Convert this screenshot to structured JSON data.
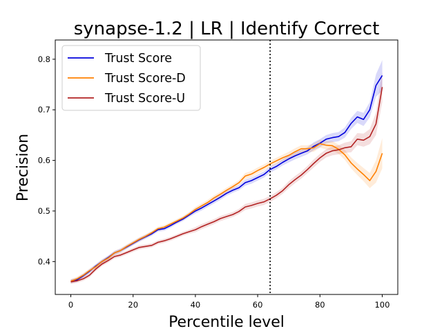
{
  "chart_data": {
    "type": "line",
    "title": "synapse-1.2 | LR | Identify Correct",
    "xlabel": "Percentile level",
    "ylabel": "Precision",
    "xlim": [
      -5,
      105
    ],
    "ylim": [
      0.335,
      0.838
    ],
    "xticks": [
      0,
      20,
      40,
      60,
      80,
      100
    ],
    "yticks": [
      0.4,
      0.5,
      0.6,
      0.7,
      0.8
    ],
    "grid": false,
    "legend_position": "upper-left",
    "vline": {
      "x": 64,
      "style": "dotted",
      "color": "#000000"
    },
    "x": [
      0,
      2,
      4,
      6,
      8,
      10,
      12,
      14,
      16,
      18,
      20,
      22,
      24,
      26,
      28,
      30,
      32,
      34,
      36,
      38,
      40,
      42,
      44,
      46,
      48,
      50,
      52,
      54,
      56,
      58,
      60,
      62,
      64,
      66,
      68,
      70,
      72,
      74,
      76,
      78,
      80,
      82,
      84,
      86,
      88,
      90,
      92,
      94,
      96,
      98,
      100
    ],
    "series": [
      {
        "name": "Trust Score",
        "color": "#0000dd",
        "values": [
          0.361,
          0.364,
          0.372,
          0.381,
          0.391,
          0.4,
          0.408,
          0.417,
          0.422,
          0.429,
          0.436,
          0.443,
          0.449,
          0.455,
          0.463,
          0.465,
          0.471,
          0.478,
          0.484,
          0.492,
          0.5,
          0.506,
          0.513,
          0.52,
          0.527,
          0.535,
          0.541,
          0.546,
          0.556,
          0.56,
          0.566,
          0.572,
          0.582,
          0.588,
          0.596,
          0.603,
          0.609,
          0.614,
          0.619,
          0.628,
          0.634,
          0.642,
          0.645,
          0.647,
          0.655,
          0.673,
          0.686,
          0.681,
          0.7,
          0.748,
          0.768
        ],
        "band": [
          0.004,
          0.004,
          0.004,
          0.004,
          0.004,
          0.004,
          0.004,
          0.004,
          0.004,
          0.004,
          0.004,
          0.004,
          0.004,
          0.004,
          0.004,
          0.004,
          0.004,
          0.004,
          0.004,
          0.004,
          0.005,
          0.005,
          0.005,
          0.005,
          0.005,
          0.005,
          0.005,
          0.005,
          0.006,
          0.006,
          0.006,
          0.006,
          0.006,
          0.006,
          0.006,
          0.007,
          0.007,
          0.007,
          0.007,
          0.008,
          0.008,
          0.008,
          0.009,
          0.009,
          0.01,
          0.011,
          0.012,
          0.013,
          0.015,
          0.022,
          0.03
        ]
      },
      {
        "name": "Trust Score-D",
        "color": "#ff8000",
        "values": [
          0.361,
          0.366,
          0.373,
          0.382,
          0.39,
          0.4,
          0.407,
          0.417,
          0.422,
          0.43,
          0.437,
          0.444,
          0.45,
          0.457,
          0.465,
          0.468,
          0.474,
          0.48,
          0.486,
          0.494,
          0.503,
          0.51,
          0.517,
          0.526,
          0.533,
          0.541,
          0.548,
          0.556,
          0.569,
          0.573,
          0.58,
          0.586,
          0.593,
          0.599,
          0.605,
          0.61,
          0.617,
          0.623,
          0.623,
          0.625,
          0.633,
          0.63,
          0.629,
          0.622,
          0.611,
          0.595,
          0.583,
          0.572,
          0.56,
          0.578,
          0.614
        ],
        "band": [
          0.004,
          0.004,
          0.004,
          0.004,
          0.004,
          0.004,
          0.004,
          0.004,
          0.004,
          0.004,
          0.004,
          0.004,
          0.004,
          0.004,
          0.004,
          0.004,
          0.004,
          0.004,
          0.004,
          0.004,
          0.005,
          0.005,
          0.005,
          0.005,
          0.005,
          0.005,
          0.005,
          0.005,
          0.006,
          0.006,
          0.006,
          0.006,
          0.006,
          0.006,
          0.006,
          0.007,
          0.007,
          0.007,
          0.007,
          0.008,
          0.008,
          0.008,
          0.009,
          0.009,
          0.01,
          0.011,
          0.012,
          0.013,
          0.015,
          0.022,
          0.03
        ]
      },
      {
        "name": "Trust Score-U",
        "color": "#b22222",
        "values": [
          0.36,
          0.362,
          0.366,
          0.373,
          0.385,
          0.395,
          0.402,
          0.41,
          0.413,
          0.418,
          0.423,
          0.428,
          0.43,
          0.432,
          0.438,
          0.441,
          0.445,
          0.45,
          0.455,
          0.459,
          0.463,
          0.469,
          0.474,
          0.479,
          0.485,
          0.489,
          0.493,
          0.499,
          0.508,
          0.511,
          0.515,
          0.518,
          0.524,
          0.531,
          0.54,
          0.552,
          0.562,
          0.571,
          0.582,
          0.594,
          0.605,
          0.614,
          0.619,
          0.621,
          0.625,
          0.627,
          0.642,
          0.64,
          0.647,
          0.672,
          0.745
        ],
        "band": [
          0.004,
          0.004,
          0.004,
          0.004,
          0.004,
          0.004,
          0.004,
          0.004,
          0.004,
          0.004,
          0.004,
          0.004,
          0.004,
          0.004,
          0.004,
          0.004,
          0.004,
          0.004,
          0.004,
          0.004,
          0.005,
          0.005,
          0.005,
          0.005,
          0.005,
          0.005,
          0.005,
          0.005,
          0.006,
          0.006,
          0.006,
          0.006,
          0.006,
          0.006,
          0.006,
          0.007,
          0.007,
          0.007,
          0.007,
          0.008,
          0.008,
          0.008,
          0.009,
          0.009,
          0.01,
          0.011,
          0.012,
          0.013,
          0.015,
          0.022,
          0.03
        ]
      }
    ]
  }
}
